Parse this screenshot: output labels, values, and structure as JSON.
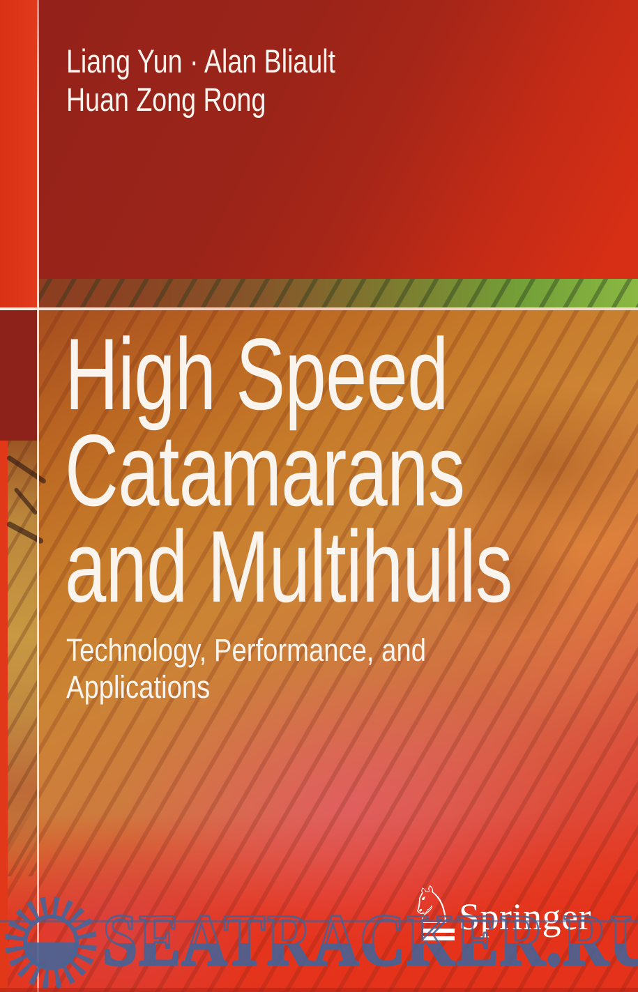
{
  "cover": {
    "authors": [
      "Liang Yun · Alan Bliault",
      "Huan Zong Rong"
    ],
    "title_lines": [
      "High Speed",
      "Catamarans",
      "and Multihulls"
    ],
    "subtitle_lines": [
      "Technology, Performance, and",
      "Applications"
    ]
  },
  "publisher": {
    "name": "Springer",
    "logo_icon": "chess-knight-icon",
    "logo_glyph": "♘"
  },
  "watermark": {
    "text": "SEATRACKER.RU",
    "icon": "sun-icon",
    "color": "#48628f"
  },
  "colors": {
    "left_strip_top": "#dd3518",
    "left_strip_middle": "#8d221a",
    "top_band_left": "#96231b",
    "top_band_right": "#d62f15",
    "green_band": "#73a038",
    "bottom_red": "#e53a22",
    "title_text": "#faf4ee"
  }
}
